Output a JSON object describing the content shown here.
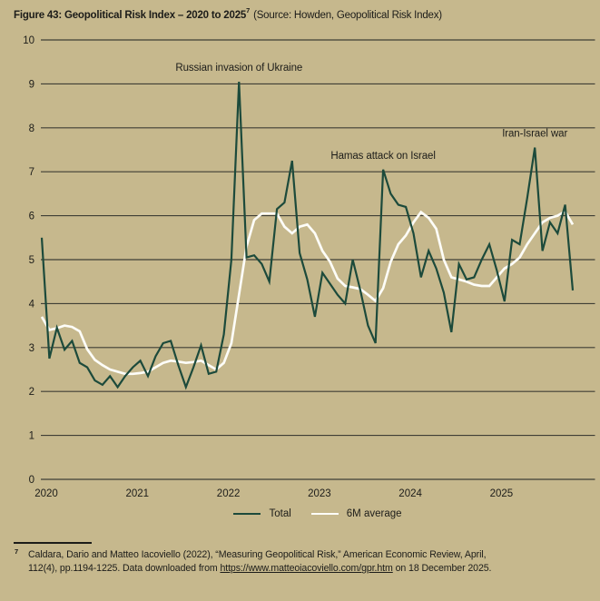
{
  "page": {
    "background": "#c6b88d",
    "text_color": "#1c1c19"
  },
  "header": {
    "title_bold": "Figure 43: Geopolitical Risk Index – 2020 to 2025",
    "title_sup": "7",
    "title_source": " (Source: Howden, Geopolitical Risk Index)"
  },
  "chart_data": {
    "type": "line",
    "title": "Geopolitical Risk Index – 2020 to 2025",
    "x_description": "Monthly values, January 2020 to November 2025",
    "x_tick_labels": [
      "2020",
      "2021",
      "2022",
      "2023",
      "2024",
      "2025"
    ],
    "y_ticks": [
      0,
      1,
      2,
      3,
      4,
      5,
      6,
      7,
      8,
      9,
      10
    ],
    "ylim": [
      0,
      10
    ],
    "grid": "horizontal",
    "grid_color": "#3f3e35",
    "legend_position": "bottom-center",
    "series": [
      {
        "name": "Total",
        "color": "#1c4a3b",
        "values": [
          5.5,
          2.75,
          3.45,
          2.95,
          3.15,
          2.65,
          2.55,
          2.25,
          2.15,
          2.35,
          2.1,
          2.35,
          2.55,
          2.7,
          2.35,
          2.8,
          3.1,
          3.15,
          2.6,
          2.1,
          2.55,
          3.05,
          2.4,
          2.45,
          3.3,
          5.0,
          9.05,
          5.05,
          5.1,
          4.9,
          4.5,
          6.15,
          6.3,
          7.25,
          5.15,
          4.55,
          3.7,
          4.7,
          4.45,
          4.2,
          4.0,
          5.0,
          4.3,
          3.5,
          3.1,
          7.05,
          6.5,
          6.25,
          6.2,
          5.6,
          4.6,
          5.2,
          4.8,
          4.25,
          3.35,
          4.9,
          4.55,
          4.6,
          5.0,
          5.35,
          4.75,
          4.05,
          5.45,
          5.35,
          6.4,
          7.55,
          5.2,
          5.85,
          5.6,
          6.25,
          4.3
        ]
      },
      {
        "name": "6M average",
        "color": "#fdfdf8",
        "values": [
          3.7,
          3.4,
          3.44,
          3.5,
          3.47,
          3.37,
          2.96,
          2.72,
          2.6,
          2.5,
          2.45,
          2.4,
          2.4,
          2.42,
          2.45,
          2.55,
          2.65,
          2.7,
          2.68,
          2.65,
          2.67,
          2.7,
          2.6,
          2.5,
          2.65,
          3.1,
          4.2,
          5.3,
          5.9,
          6.05,
          6.05,
          6.05,
          5.75,
          5.6,
          5.75,
          5.8,
          5.6,
          5.2,
          4.95,
          4.57,
          4.4,
          4.37,
          4.33,
          4.2,
          4.06,
          4.35,
          4.95,
          5.35,
          5.55,
          5.85,
          6.08,
          5.95,
          5.7,
          5.0,
          4.6,
          4.55,
          4.5,
          4.43,
          4.4,
          4.4,
          4.6,
          4.8,
          4.9,
          5.05,
          5.35,
          5.6,
          5.85,
          5.95,
          6.0,
          6.1,
          5.8
        ]
      }
    ],
    "annotations": [
      {
        "text": "Russian invasion of Ukraine",
        "month_index": 26,
        "value": 9.05
      },
      {
        "text": "Hamas attack on Israel",
        "month_index": 45,
        "value": 7.05
      },
      {
        "text": "Iran-Israel war",
        "month_index": 65,
        "value": 7.55
      }
    ]
  },
  "footnote": {
    "marker": "7",
    "line1_pre": "Caldara, Dario and Matteo Iacoviello (2022), “Measuring Geopolitical Risk,” ",
    "journal": "American Economic Review",
    "line1_post": ", April,",
    "line2_pre": "112(4), pp.1194-1225. Data downloaded from ",
    "link": "https://www.matteoiacoviello.com/gpr.htm",
    "line2_post": " on 18 December 2025."
  }
}
